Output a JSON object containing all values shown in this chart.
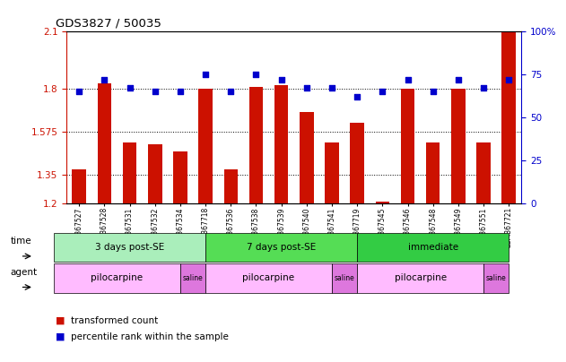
{
  "title": "GDS3827 / 50035",
  "samples": [
    "GSM367527",
    "GSM367528",
    "GSM367531",
    "GSM367532",
    "GSM367534",
    "GSM367718",
    "GSM367536",
    "GSM367538",
    "GSM367539",
    "GSM367540",
    "GSM367541",
    "GSM367719",
    "GSM367545",
    "GSM367546",
    "GSM367548",
    "GSM367549",
    "GSM367551",
    "GSM367721"
  ],
  "bar_values": [
    1.38,
    1.83,
    1.52,
    1.51,
    1.47,
    1.8,
    1.38,
    1.81,
    1.82,
    1.68,
    1.52,
    1.62,
    1.21,
    1.8,
    1.52,
    1.8,
    1.52,
    2.1
  ],
  "dot_values": [
    65,
    72,
    67,
    65,
    65,
    75,
    65,
    75,
    72,
    67,
    67,
    62,
    65,
    72,
    65,
    72,
    67,
    72
  ],
  "ylim_left": [
    1.2,
    2.1
  ],
  "ylim_right": [
    0,
    100
  ],
  "yticks_left": [
    1.2,
    1.35,
    1.575,
    1.8,
    2.1
  ],
  "ytick_labels_left": [
    "1.2",
    "1.35",
    "1.575",
    "1.8",
    "2.1"
  ],
  "yticks_right": [
    0,
    25,
    50,
    75,
    100
  ],
  "ytick_labels_right": [
    "0",
    "25",
    "50",
    "75",
    "100%"
  ],
  "bar_color": "#cc1100",
  "dot_color": "#0000cc",
  "bar_bottom": 1.2,
  "time_groups": [
    {
      "label": "3 days post-SE",
      "start": 0,
      "end": 5,
      "color": "#aaeebb"
    },
    {
      "label": "7 days post-SE",
      "start": 6,
      "end": 11,
      "color": "#55dd55"
    },
    {
      "label": "immediate",
      "start": 12,
      "end": 17,
      "color": "#33cc44"
    }
  ],
  "agent_groups": [
    {
      "label": "pilocarpine",
      "start": 0,
      "end": 4,
      "color": "#ffbbff"
    },
    {
      "label": "saline",
      "start": 5,
      "end": 5,
      "color": "#dd77dd"
    },
    {
      "label": "pilocarpine",
      "start": 6,
      "end": 10,
      "color": "#ffbbff"
    },
    {
      "label": "saline",
      "start": 11,
      "end": 11,
      "color": "#dd77dd"
    },
    {
      "label": "pilocarpine",
      "start": 12,
      "end": 16,
      "color": "#ffbbff"
    },
    {
      "label": "saline",
      "start": 17,
      "end": 17,
      "color": "#dd77dd"
    }
  ],
  "legend_items": [
    {
      "label": "transformed count",
      "color": "#cc1100"
    },
    {
      "label": "percentile rank within the sample",
      "color": "#0000cc"
    }
  ],
  "hgrid_dotted": [
    1.35,
    1.575,
    1.8
  ],
  "background_color": "#ffffff"
}
